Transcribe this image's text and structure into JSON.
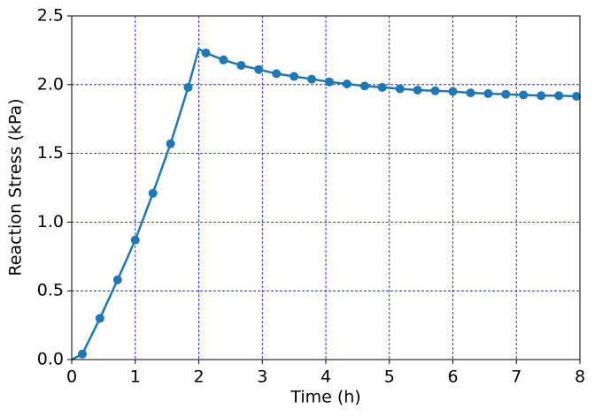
{
  "chart_data": {
    "type": "line",
    "xlabel": "Time (h)",
    "ylabel": "Reaction Stress (kPa)",
    "xlim": [
      0,
      8
    ],
    "ylim": [
      0,
      2.5
    ],
    "xticks": [
      0,
      1,
      2,
      3,
      4,
      5,
      6,
      7,
      8
    ],
    "yticks": [
      {
        "value": 0,
        "label": "0.0"
      },
      {
        "value": 0.5,
        "label": "0.5"
      },
      {
        "value": 1,
        "label": "1.0"
      },
      {
        "value": 1.5,
        "label": "1.5"
      },
      {
        "value": 2,
        "label": "2.0"
      },
      {
        "value": 2.5,
        "label": "2.5"
      }
    ],
    "grid": true,
    "grid_color": "#0000ff",
    "series": [
      {
        "color": "#1f77b4",
        "marker": false,
        "x": [
          0,
          0.167,
          0.444,
          0.722,
          1.0,
          1.278,
          1.556,
          1.833,
          2.0,
          2.111,
          2.389,
          2.667,
          2.944,
          3.222,
          3.5,
          3.778,
          4.056,
          4.333,
          4.611,
          4.889,
          5.167,
          5.444,
          5.722,
          6.0,
          6.278,
          6.556,
          6.833,
          7.111,
          7.389,
          7.667,
          7.944
        ],
        "values": [
          0,
          0.04,
          0.3,
          0.58,
          0.87,
          1.21,
          1.57,
          1.98,
          2.26,
          2.23,
          2.18,
          2.14,
          2.11,
          2.08,
          2.06,
          2.04,
          2.02,
          2.005,
          1.99,
          1.98,
          1.97,
          1.96,
          1.955,
          1.95,
          1.94,
          1.935,
          1.93,
          1.925,
          1.92,
          1.92,
          1.915
        ]
      },
      {
        "color": "#1f77b4",
        "marker": true,
        "x": [
          0.167,
          0.444,
          0.722,
          1.0,
          1.278,
          1.556,
          1.833,
          2.111,
          2.389,
          2.667,
          2.944,
          3.222,
          3.5,
          3.778,
          4.056,
          4.333,
          4.611,
          4.889,
          5.167,
          5.444,
          5.722,
          6.0,
          6.278,
          6.556,
          6.833,
          7.111,
          7.389,
          7.667,
          7.944
        ],
        "values": [
          0.04,
          0.3,
          0.58,
          0.87,
          1.21,
          1.57,
          1.98,
          2.23,
          2.18,
          2.14,
          2.11,
          2.08,
          2.06,
          2.04,
          2.02,
          2.005,
          1.99,
          1.98,
          1.97,
          1.96,
          1.955,
          1.95,
          1.94,
          1.935,
          1.93,
          1.925,
          1.92,
          1.92,
          1.915
        ]
      }
    ]
  }
}
